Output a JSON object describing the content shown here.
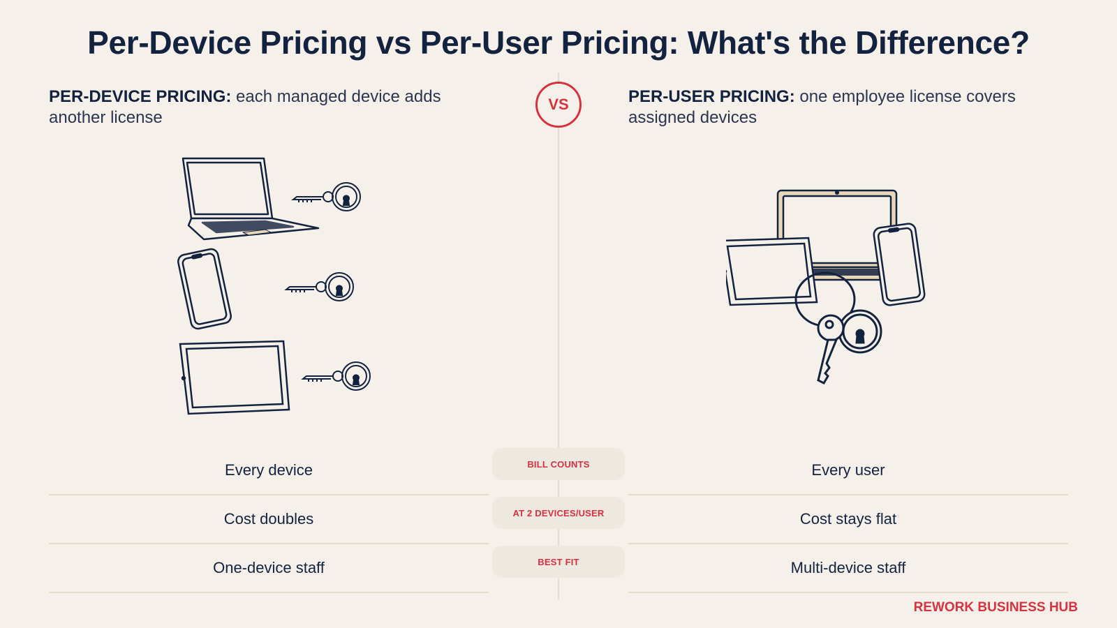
{
  "title": "Per-Device Pricing vs Per-User Pricing: What's the Difference?",
  "vs_label": "VS",
  "left": {
    "heading_strong": "PER-DEVICE PRICING:",
    "heading_text": " each managed device adds another license"
  },
  "right": {
    "heading_strong": "PER-USER PRICING:",
    "heading_text": " one employee license covers assigned devices"
  },
  "rows": [
    {
      "left": "Every device",
      "label": "BILL COUNTS",
      "right": "Every user"
    },
    {
      "left": "Cost doubles",
      "label": "AT 2 DEVICES/USER",
      "right": "Cost stays flat"
    },
    {
      "left": "One-device staff",
      "label": "BEST FIT",
      "right": "Multi-device staff"
    }
  ],
  "brand": "REWORK BUSINESS HUB",
  "colors": {
    "background": "#f5f1ea",
    "navy": "#13223f",
    "accent_red": "#d8313f",
    "divider": "#e4dccc",
    "pill": "#ede8e0"
  },
  "icons": [
    "laptop-icon",
    "phone-icon",
    "tablet-icon",
    "key-icon",
    "keyring-icon"
  ]
}
